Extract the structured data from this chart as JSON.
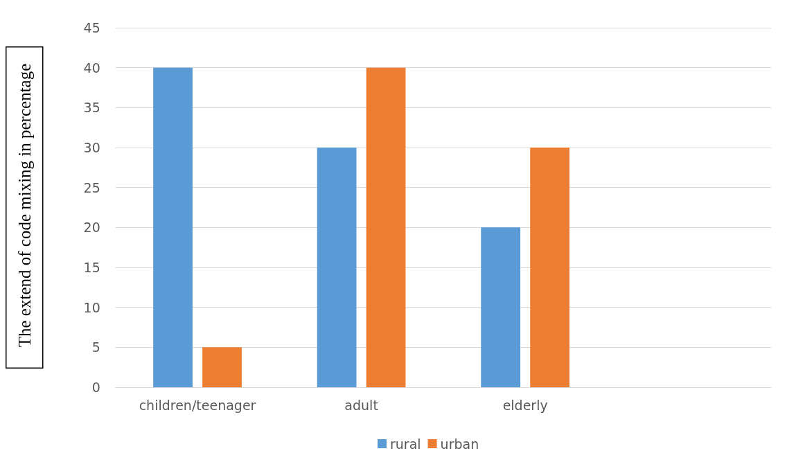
{
  "chart_data": {
    "type": "bar",
    "ylabel": "The extend of code mixing in percentage",
    "categories": [
      "children/teenager",
      "adult",
      "elderly",
      null
    ],
    "series": [
      {
        "name": "rural",
        "color": "#5b9bd5",
        "values": [
          40,
          30,
          20,
          null
        ]
      },
      {
        "name": "urban",
        "color": "#ed7d31",
        "values": [
          5,
          40,
          30,
          null
        ]
      }
    ],
    "ylim": [
      0,
      45
    ],
    "yticks": [
      0,
      5,
      10,
      15,
      20,
      25,
      30,
      35,
      40,
      45
    ],
    "grid": "y",
    "legend": "bottom"
  }
}
